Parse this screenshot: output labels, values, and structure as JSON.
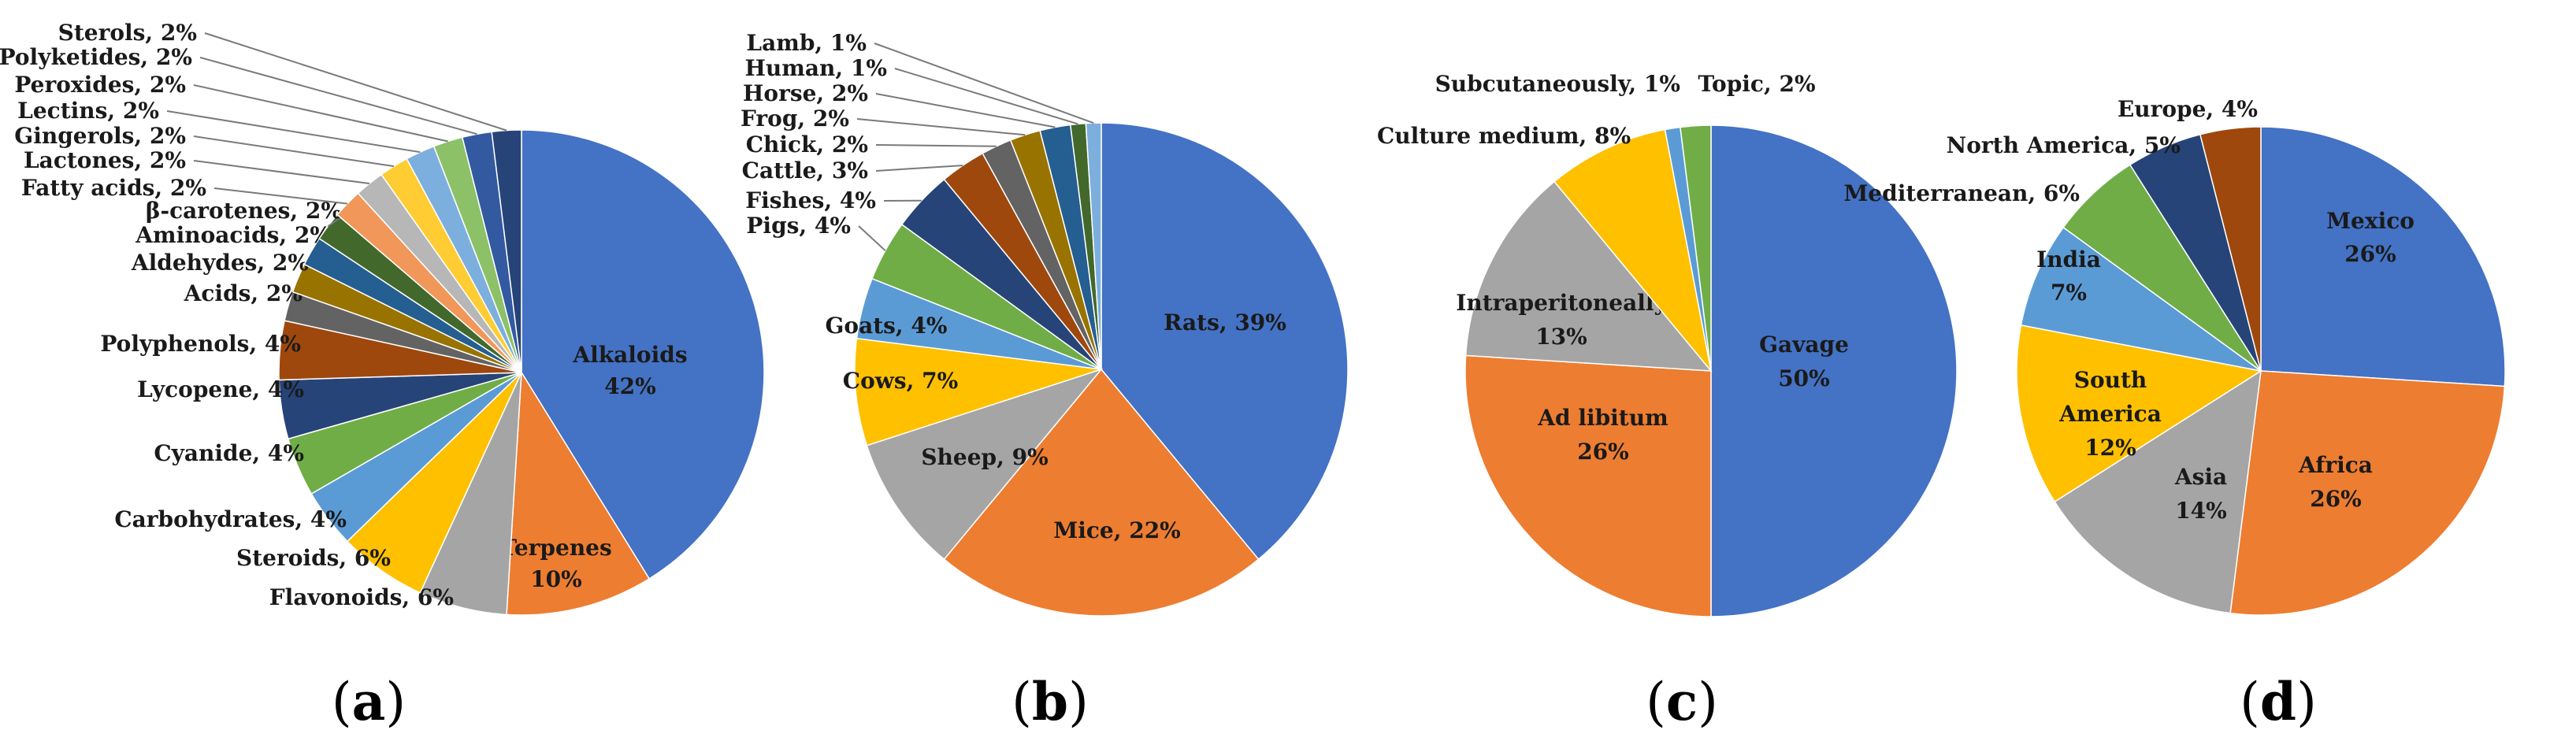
{
  "colors": {
    "blue": "#4472C4",
    "orange": "#ED7D31",
    "gray": "#A5A5A5",
    "gold": "#FFC000",
    "lightblue": "#5B9BD5",
    "green": "#70AD47",
    "navy": "#264478",
    "rust": "#9E480E",
    "dimgray": "#636363",
    "olive": "#997300",
    "steel": "#255E91",
    "darkgreen": "#43682B",
    "salmon": "#F1975A",
    "silver": "#B7B7B7",
    "yellow": "#FFCD33",
    "sky": "#7CAFDD",
    "lime": "#8CC168",
    "slate": "#335AA1"
  },
  "chart_data": [
    {
      "type": "pie",
      "caption": "(a)",
      "caption_letter": "a",
      "slices": [
        {
          "label": "Alkaloids",
          "text": "Alkaloids",
          "pct": "42%",
          "value": 42,
          "color": "#4472C4",
          "inside": true
        },
        {
          "label": "Terpenes",
          "text": "Terpenes",
          "pct": "10%",
          "value": 10,
          "color": "#ED7D31",
          "inside": true
        },
        {
          "label": "Flavonoids",
          "text": "Flavonoids, 6%",
          "value": 6,
          "color": "#A5A5A5"
        },
        {
          "label": "Steroids",
          "text": "Steroids, 6%",
          "value": 6,
          "color": "#FFC000"
        },
        {
          "label": "Carbohydrates",
          "text": "Carbohydrates, 4%",
          "value": 4,
          "color": "#5B9BD5"
        },
        {
          "label": "Cyanide",
          "text": "Cyanide, 4%",
          "value": 4,
          "color": "#70AD47"
        },
        {
          "label": "Lycopene",
          "text": "Lycopene, 4%",
          "value": 4,
          "color": "#264478"
        },
        {
          "label": "Polyphenols",
          "text": "Polyphenols, 4%",
          "value": 4,
          "color": "#9E480E"
        },
        {
          "label": "Acids",
          "text": "Acids, 2%",
          "value": 2,
          "color": "#636363"
        },
        {
          "label": "Aldehydes",
          "text": "Aldehydes, 2%",
          "value": 2,
          "color": "#997300"
        },
        {
          "label": "Aminoacids",
          "text": "Aminoacids, 2%",
          "value": 2,
          "color": "#255E91"
        },
        {
          "label": "β-carotenes",
          "text": "β-carotenes, 2%",
          "value": 2,
          "color": "#43682B"
        },
        {
          "label": "Fatty acids",
          "text": "Fatty acids, 2%",
          "value": 2,
          "color": "#F1975A"
        },
        {
          "label": "Lactones",
          "text": "Lactones, 2%",
          "value": 2,
          "color": "#B7B7B7"
        },
        {
          "label": "Gingerols",
          "text": "Gingerols, 2%",
          "value": 2,
          "color": "#FFCD33"
        },
        {
          "label": "Lectins",
          "text": "Lectins, 2%",
          "value": 2,
          "color": "#7CAFDD"
        },
        {
          "label": "Peroxides",
          "text": "Peroxides, 2%",
          "value": 2,
          "color": "#8CC168"
        },
        {
          "label": "Polyketides",
          "text": "Polyketides, 2%",
          "value": 2,
          "color": "#335AA1"
        },
        {
          "label": "Sterols",
          "text": "Sterols, 2%",
          "value": 2,
          "color": "#264478"
        }
      ]
    },
    {
      "type": "pie",
      "caption": "(b)",
      "caption_letter": "b",
      "slices": [
        {
          "label": "Rats",
          "text": "Rats, 39%",
          "value": 39,
          "color": "#4472C4",
          "inside": true
        },
        {
          "label": "Mice",
          "text": "Mice, 22%",
          "value": 22,
          "color": "#ED7D31",
          "inside": true
        },
        {
          "label": "Sheep",
          "text": "Sheep, 9%",
          "value": 9,
          "color": "#A5A5A5",
          "inside": true
        },
        {
          "label": "Cows",
          "text": "Cows, 7%",
          "value": 7,
          "color": "#FFC000",
          "inside": true
        },
        {
          "label": "Goats",
          "text": "Goats, 4%",
          "value": 4,
          "color": "#5B9BD5",
          "inside": true
        },
        {
          "label": "Pigs",
          "text": "Pigs, 4%",
          "value": 4,
          "color": "#70AD47"
        },
        {
          "label": "Fishes",
          "text": "Fishes, 4%",
          "value": 4,
          "color": "#264478"
        },
        {
          "label": "Cattle",
          "text": "Cattle, 3%",
          "value": 3,
          "color": "#9E480E"
        },
        {
          "label": "Chick",
          "text": "Chick, 2%",
          "value": 2,
          "color": "#636363"
        },
        {
          "label": "Frog",
          "text": "Frog, 2%",
          "value": 2,
          "color": "#997300"
        },
        {
          "label": "Horse",
          "text": "Horse, 2%",
          "value": 2,
          "color": "#255E91"
        },
        {
          "label": "Human",
          "text": "Human, 1%",
          "value": 1,
          "color": "#43682B"
        },
        {
          "label": "Lamb",
          "text": "Lamb, 1%",
          "value": 1,
          "color": "#7CAFDD"
        }
      ]
    },
    {
      "type": "pie",
      "caption": "(c)",
      "caption_letter": "c",
      "slices": [
        {
          "label": "Gavage",
          "text": "Gavage",
          "pct": "50%",
          "value": 50,
          "color": "#4472C4",
          "inside": true
        },
        {
          "label": "Ad libitum",
          "text": "Ad libitum",
          "pct": "26%",
          "value": 26,
          "color": "#ED7D31",
          "inside": true
        },
        {
          "label": "Intraperitoneally",
          "text": "Intraperitoneally",
          "pct": "13%",
          "value": 13,
          "color": "#A5A5A5",
          "inside": true
        },
        {
          "label": "Culture medium",
          "text": "Culture medium, 8%",
          "value": 8,
          "color": "#FFC000"
        },
        {
          "label": "Subcutaneously",
          "text": "Subcutaneously, 1%",
          "value": 1,
          "color": "#5B9BD5"
        },
        {
          "label": "Topic",
          "text": "Topic, 2%",
          "value": 2,
          "color": "#70AD47"
        }
      ]
    },
    {
      "type": "pie",
      "caption": "(d)",
      "caption_letter": "d",
      "slices": [
        {
          "label": "Mexico",
          "text": "Mexico",
          "pct": "26%",
          "value": 26,
          "color": "#4472C4",
          "inside": true
        },
        {
          "label": "Africa",
          "text": "Africa",
          "pct": "26%",
          "value": 26,
          "color": "#ED7D31",
          "inside": true
        },
        {
          "label": "Asia",
          "text": "Asia",
          "pct": "14%",
          "value": 14,
          "color": "#A5A5A5",
          "inside": true
        },
        {
          "label": "South America",
          "text": "South",
          "text2": "America",
          "pct": "12%",
          "value": 12,
          "color": "#FFC000",
          "inside": true
        },
        {
          "label": "India",
          "text": "India",
          "pct": "7%",
          "value": 7,
          "color": "#5B9BD5",
          "inside": true
        },
        {
          "label": "Mediterranean",
          "text": "Mediterranean, 6%",
          "value": 6,
          "color": "#70AD47"
        },
        {
          "label": "North America",
          "text": "North America, 5%",
          "value": 5,
          "color": "#264478"
        },
        {
          "label": "Europe",
          "text": "Europe, 4%",
          "value": 4,
          "color": "#9E480E"
        }
      ]
    }
  ]
}
